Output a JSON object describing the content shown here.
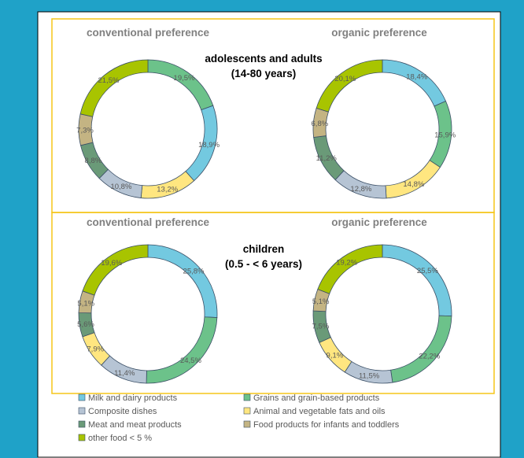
{
  "colors": {
    "frame_bg": "#1fa2c8",
    "panel_border": "#f5c518",
    "outer_border": "#000000"
  },
  "legend": [
    {
      "name": "Milk and dairy products",
      "color": "#73c9e0"
    },
    {
      "name": "Grains and grain-based products",
      "color": "#6cc28a"
    },
    {
      "name": "Composite dishes",
      "color": "#b6c4d4"
    },
    {
      "name": "Animal and vegetable fats and oils",
      "color": "#ffe680"
    },
    {
      "name": "Meat and meat products",
      "color": "#6a9a78"
    },
    {
      "name": "Food products for infants and toddlers",
      "color": "#c4b483"
    },
    {
      "name": "other food < 5 %",
      "color": "#a8c400"
    }
  ],
  "groups": [
    {
      "title_line1": "adolescents and adults",
      "title_line2": "(14-80 years)"
    },
    {
      "title_line1": "children",
      "title_line2": "(0.5 - < 6 years)"
    }
  ],
  "chart_data": [
    {
      "type": "pie",
      "variant": "donut",
      "title": "conventional preference",
      "group": "adolescents and adults (14-80 years)",
      "categories": [
        "Grains and grain-based products",
        "Milk and dairy products",
        "Animal and vegetable fats and oils",
        "Composite dishes",
        "Meat and meat products",
        "Food products for infants and toddlers",
        "other food < 5 %"
      ],
      "values": [
        19.5,
        18.9,
        13.2,
        10.8,
        8.8,
        7.3,
        21.5
      ],
      "labels": [
        "19,5%",
        "18,9%",
        "13,2%",
        "10,8%",
        "8,8%",
        "7,3%",
        "21,5%"
      ]
    },
    {
      "type": "pie",
      "variant": "donut",
      "title": "organic preference",
      "group": "adolescents and adults (14-80 years)",
      "categories": [
        "Milk and dairy products",
        "Grains and grain-based products",
        "Animal and vegetable fats and oils",
        "Composite dishes",
        "Meat and meat products",
        "Food products for infants and toddlers",
        "other food < 5 %"
      ],
      "values": [
        18.4,
        15.9,
        14.8,
        12.8,
        11.2,
        6.8,
        20.1
      ],
      "labels": [
        "18,4%",
        "15,9%",
        "14,8%",
        "12,8%",
        "11,2%",
        "6,8%",
        "20,1%"
      ]
    },
    {
      "type": "pie",
      "variant": "donut",
      "title": "conventional preference",
      "group": "children (0.5 - < 6 years)",
      "categories": [
        "Milk and dairy products",
        "Grains and grain-based products",
        "Composite dishes",
        "Animal and vegetable fats and oils",
        "Meat and meat products",
        "Food products for infants and toddlers",
        "other food < 5 %"
      ],
      "values": [
        25.8,
        24.5,
        11.4,
        7.9,
        5.6,
        5.1,
        19.6
      ],
      "labels": [
        "25,8%",
        "24,5%",
        "11,4%",
        "7,9%",
        "5,6%",
        "5,1%",
        "19,6%"
      ]
    },
    {
      "type": "pie",
      "variant": "donut",
      "title": "organic preference",
      "group": "children (0.5 - < 6 years)",
      "categories": [
        "Milk and dairy products",
        "Grains and grain-based products",
        "Composite dishes",
        "Animal and vegetable fats and oils",
        "Meat and meat products",
        "Food products for infants and toddlers",
        "other food < 5 %"
      ],
      "values": [
        25.5,
        22.2,
        11.5,
        9.1,
        7.5,
        5.1,
        19.2
      ],
      "labels": [
        "25,5%",
        "22,2%",
        "11,5%",
        "9,1%",
        "7,5%",
        "5,1%",
        "19,2%"
      ]
    }
  ]
}
